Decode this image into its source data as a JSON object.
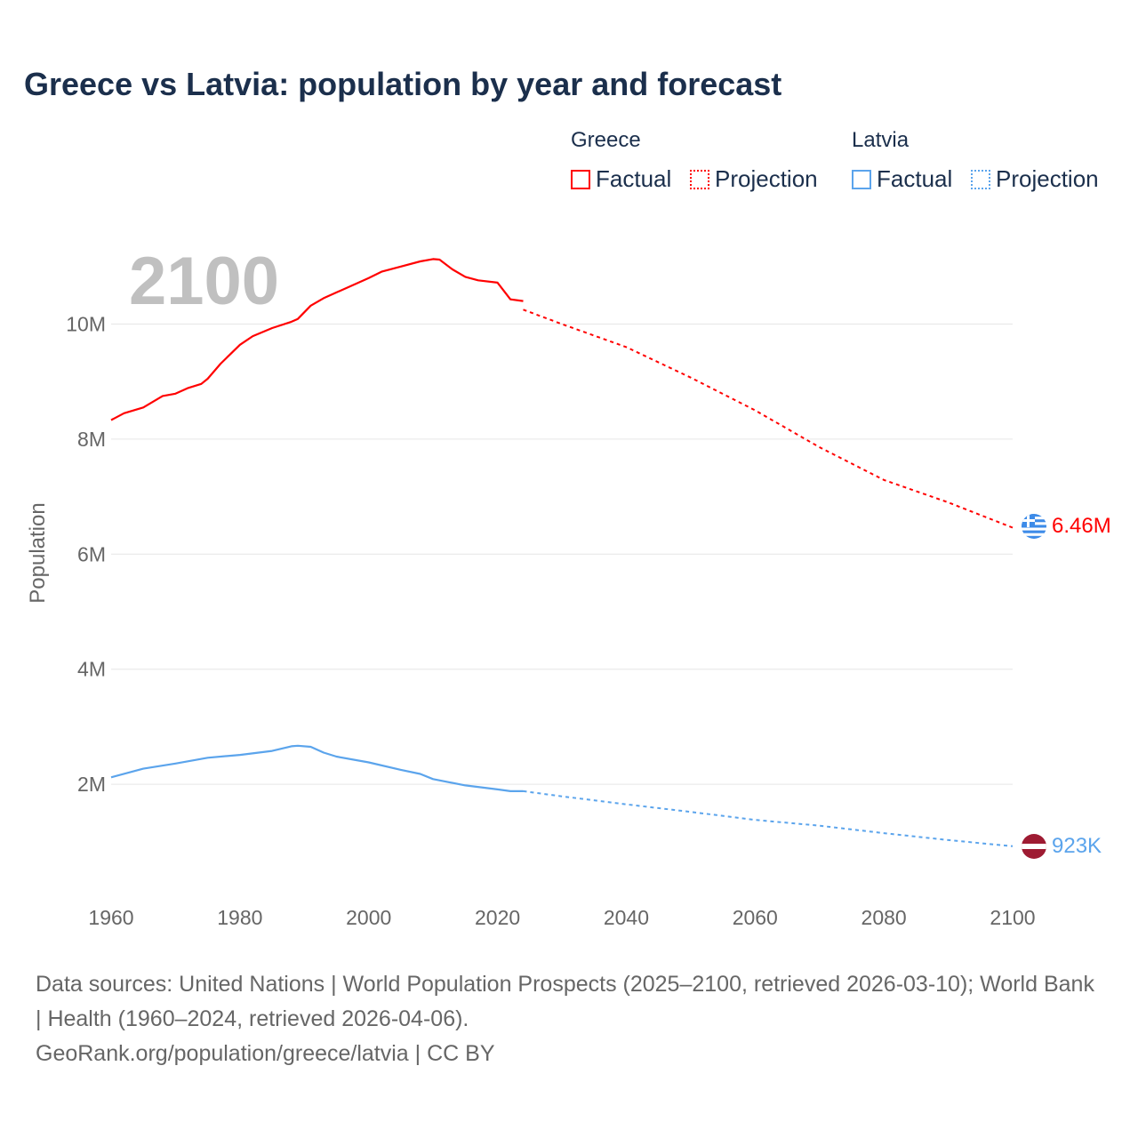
{
  "title": "Greece vs Latvia: population by year and forecast",
  "legend": {
    "groups": [
      {
        "name": "Greece",
        "factual": "Factual",
        "projection": "Projection",
        "color": "#ff0000"
      },
      {
        "name": "Latvia",
        "factual": "Factual",
        "projection": "Projection",
        "color": "#5ba4ec"
      }
    ]
  },
  "chart_data": {
    "type": "line",
    "year_label": "2100",
    "ylabel": "Population",
    "xlim": [
      1960,
      2100
    ],
    "ylim": [
      0,
      11.5
    ],
    "x_ticks": [
      1960,
      1980,
      2000,
      2020,
      2040,
      2060,
      2080,
      2100
    ],
    "x_tick_labels": [
      "1960",
      "1980",
      "2000",
      "2020",
      "2040",
      "2060",
      "2080",
      "2100"
    ],
    "y_ticks": [
      2,
      4,
      6,
      8,
      10
    ],
    "y_tick_labels": [
      "2M",
      "4M",
      "6M",
      "8M",
      "10M"
    ],
    "grid": true,
    "series": [
      {
        "name": "Greece",
        "color": "#ff0000",
        "end_label": "6.46M",
        "factual": {
          "x": [
            1960,
            1962,
            1965,
            1968,
            1970,
            1972,
            1974,
            1975,
            1977,
            1980,
            1982,
            1985,
            1988,
            1989,
            1991,
            1993,
            1995,
            1998,
            2000,
            2002,
            2005,
            2008,
            2010,
            2011,
            2013,
            2015,
            2017,
            2020,
            2022,
            2024
          ],
          "y": [
            8.33,
            8.45,
            8.55,
            8.75,
            8.79,
            8.89,
            8.96,
            9.05,
            9.31,
            9.64,
            9.79,
            9.93,
            10.04,
            10.09,
            10.32,
            10.45,
            10.55,
            10.7,
            10.8,
            10.91,
            11.0,
            11.09,
            11.13,
            11.12,
            10.95,
            10.82,
            10.76,
            10.72,
            10.43,
            10.4
          ]
        },
        "projection": {
          "x": [
            2024,
            2030,
            2040,
            2050,
            2060,
            2070,
            2080,
            2090,
            2100
          ],
          "y": [
            10.25,
            10.0,
            9.6,
            9.07,
            8.5,
            7.86,
            7.29,
            6.9,
            6.46
          ]
        }
      },
      {
        "name": "Latvia",
        "color": "#5ba4ec",
        "end_label": "923K",
        "factual": {
          "x": [
            1960,
            1965,
            1970,
            1975,
            1980,
            1985,
            1988,
            1989,
            1991,
            1993,
            1995,
            2000,
            2005,
            2008,
            2010,
            2015,
            2020,
            2022,
            2024
          ],
          "y": [
            2.12,
            2.27,
            2.36,
            2.46,
            2.51,
            2.58,
            2.66,
            2.67,
            2.65,
            2.55,
            2.48,
            2.38,
            2.25,
            2.18,
            2.09,
            1.98,
            1.91,
            1.88,
            1.88
          ]
        },
        "projection": {
          "x": [
            2024,
            2030,
            2040,
            2050,
            2060,
            2070,
            2080,
            2090,
            2100
          ],
          "y": [
            1.88,
            1.79,
            1.65,
            1.52,
            1.38,
            1.28,
            1.15,
            1.03,
            0.923
          ]
        }
      }
    ]
  },
  "footer": {
    "sources": "Data sources: United Nations | World Population Prospects (2025–2100, retrieved 2026-03-10); World Bank | Health (1960–2024, retrieved 2026-04-06).",
    "credit": "GeoRank.org/population/greece/latvia | CC BY"
  }
}
